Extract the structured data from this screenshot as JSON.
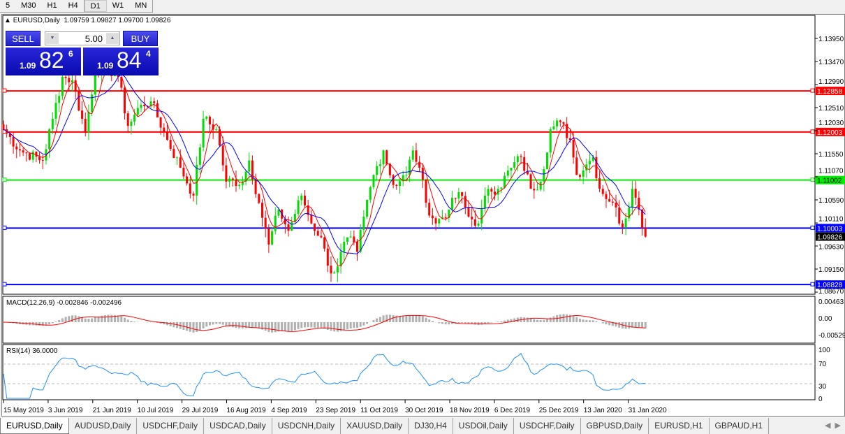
{
  "timeframes": [
    "5",
    "M30",
    "H1",
    "H4",
    "D1",
    "W1",
    "MN"
  ],
  "active_timeframe": "D1",
  "header": {
    "symbol": "EURUSD,Daily",
    "ohlc": "1.09759 1.09827 1.09700 1.09826"
  },
  "trade": {
    "sell_label": "SELL",
    "buy_label": "BUY",
    "lot": "5.00",
    "sell_small": "1.09",
    "sell_big": "82",
    "sell_sup": "6",
    "buy_small": "1.09",
    "buy_big": "84",
    "buy_sup": "4"
  },
  "price_axis": {
    "ticks": [
      "1.13950",
      "1.13470",
      "1.12990",
      "1.12510",
      "1.12030",
      "1.11550",
      "1.11070",
      "1.10590",
      "1.10110",
      "1.09630",
      "1.09150",
      "1.08670"
    ],
    "current": "1.09826"
  },
  "hlines": [
    {
      "price": "1.12858",
      "color": "#ff0000"
    },
    {
      "price": "1.12003",
      "color": "#ff0000"
    },
    {
      "price": "1.11002",
      "color": "#00ee00"
    },
    {
      "price": "1.10003",
      "color": "#0000ff"
    },
    {
      "price": "1.08828",
      "color": "#0000ff"
    }
  ],
  "macd": {
    "label": "MACD(12,26,9) -0.002846 -0.002496",
    "ticks": [
      "0.00463",
      "0.00",
      "-0.005299"
    ]
  },
  "rsi": {
    "label": "RSI(14) 36.0000",
    "ticks": [
      "100",
      "70",
      "30",
      "0"
    ],
    "levels": [
      70,
      30
    ]
  },
  "dates": [
    "15 May 2019",
    "3 Jun 2019",
    "21 Jun 2019",
    "10 Jul 2019",
    "29 Jul 2019",
    "16 Aug 2019",
    "4 Sep 2019",
    "23 Sep 2019",
    "11 Oct 2019",
    "30 Oct 2019",
    "18 Nov 2019",
    "6 Dec 2019",
    "25 Dec 2019",
    "13 Jan 2020",
    "31 Jan 2020"
  ],
  "tabs": [
    "EURUSD,Daily",
    "AUDUSD,Daily",
    "USDCHF,Daily",
    "USDCAD,Daily",
    "USDCNH,Daily",
    "XAUUSD,Daily",
    "DJ30,H4",
    "USDOil,Daily",
    "USDCHF,Daily",
    "GBPUSD,Daily",
    "EURUSD,H1",
    "GBPAUD,H1"
  ],
  "active_tab": "EURUSD,Daily",
  "colors": {
    "bull": "#00dd00",
    "bear": "#ff0000",
    "ma_fast": "#ff0000",
    "ma_slow": "#0000ff",
    "macd_hist": "#b0b0b0",
    "macd_signal": "#ff0000",
    "rsi": "#1e90ff"
  },
  "chart_data": {
    "type": "candlestick",
    "symbol": "EURUSD",
    "timeframe": "Daily",
    "ylim": [
      1.0867,
      1.1395
    ],
    "close_waypoints": [
      [
        0,
        1.1206
      ],
      [
        5,
        1.1162
      ],
      [
        12,
        1.1141
      ],
      [
        15,
        1.1228
      ],
      [
        18,
        1.1315
      ],
      [
        21,
        1.1308
      ],
      [
        25,
        1.1199
      ],
      [
        28,
        1.133
      ],
      [
        31,
        1.1337
      ],
      [
        35,
        1.1315
      ],
      [
        38,
        1.1213
      ],
      [
        42,
        1.1257
      ],
      [
        45,
        1.1264
      ],
      [
        50,
        1.1184
      ],
      [
        54,
        1.1126
      ],
      [
        58,
        1.1068
      ],
      [
        61,
        1.1228
      ],
      [
        65,
        1.1206
      ],
      [
        68,
        1.1097
      ],
      [
        73,
        1.1097
      ],
      [
        75,
        1.1141
      ],
      [
        78,
        1.1053
      ],
      [
        81,
        1.0966
      ],
      [
        84,
        1.1039
      ],
      [
        87,
        1.0995
      ],
      [
        91,
        1.1068
      ],
      [
        94,
        1.101
      ],
      [
        97,
        1.0981
      ],
      [
        99,
        1.0922
      ],
      [
        101,
        1.0908
      ],
      [
        105,
        1.0981
      ],
      [
        108,
        1.0951
      ],
      [
        110,
        1.1024
      ],
      [
        113,
        1.1111
      ],
      [
        116,
        1.1162
      ],
      [
        119,
        1.109
      ],
      [
        123,
        1.1111
      ],
      [
        125,
        1.1162
      ],
      [
        127,
        1.1126
      ],
      [
        129,
        1.1053
      ],
      [
        132,
        1.101
      ],
      [
        136,
        1.1039
      ],
      [
        139,
        1.1075
      ],
      [
        142,
        1.1024
      ],
      [
        145,
        1.101
      ],
      [
        148,
        1.1082
      ],
      [
        151,
        1.1082
      ],
      [
        155,
        1.1126
      ],
      [
        158,
        1.1148
      ],
      [
        161,
        1.1082
      ],
      [
        164,
        1.1097
      ],
      [
        167,
        1.1206
      ],
      [
        170,
        1.1221
      ],
      [
        173,
        1.1184
      ],
      [
        175,
        1.1111
      ],
      [
        178,
        1.1133
      ],
      [
        180,
        1.1148
      ],
      [
        182,
        1.1082
      ],
      [
        186,
        1.1053
      ],
      [
        189,
        1.1002
      ],
      [
        192,
        1.1082
      ],
      [
        194,
        1.1039
      ],
      [
        196,
        1.09826
      ]
    ]
  }
}
